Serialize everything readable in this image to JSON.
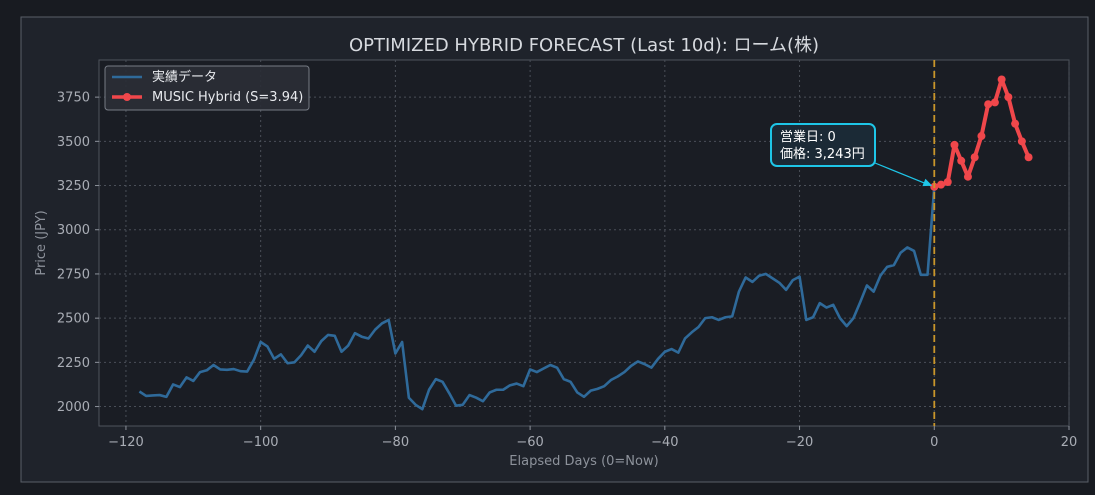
{
  "colors": {
    "figure_bg": "#181b21",
    "panel_bg": "#1f232b",
    "plot_bg": "#1a1d24",
    "actual": "#2f6a9a",
    "forecast": "#f0474b",
    "now_line": "#c9962a",
    "annotation": "#1ec6e8",
    "grid": "#4a4f58"
  },
  "chart_data": {
    "type": "line",
    "title": "OPTIMIZED HYBRID FORECAST (Last 10d): ローム(株)",
    "xlabel": "Elapsed Days (0=Now)",
    "ylabel": "Price (JPY)",
    "xlim": [
      -124,
      20
    ],
    "ylim": [
      1890,
      3960
    ],
    "grid": true,
    "legend_position": "top-left",
    "x_ticks": [
      -120,
      -100,
      -80,
      -60,
      -40,
      -20,
      0,
      20
    ],
    "x_tick_labels": [
      "−120",
      "−100",
      "−80",
      "−60",
      "−40",
      "−20",
      "0",
      "20"
    ],
    "y_ticks": [
      2000,
      2250,
      2500,
      2750,
      3000,
      3250,
      3500,
      3750
    ],
    "y_tick_labels": [
      "2000",
      "2250",
      "2500",
      "2750",
      "3000",
      "3250",
      "3500",
      "3750"
    ],
    "now_x": 0,
    "series": [
      {
        "name": "実績データ",
        "style": "line",
        "x": [
          -118,
          -117,
          -116,
          -115,
          -114,
          -113,
          -112,
          -111,
          -110,
          -109,
          -108,
          -107,
          -106,
          -105,
          -104,
          -103,
          -102,
          -101,
          -100,
          -99,
          -98,
          -97,
          -96,
          -95,
          -94,
          -93,
          -92,
          -91,
          -90,
          -89,
          -88,
          -87,
          -86,
          -85,
          -84,
          -83,
          -82,
          -81,
          -80,
          -79,
          -78,
          -77,
          -76,
          -75,
          -74,
          -73,
          -72,
          -71,
          -70,
          -69,
          -68,
          -67,
          -66,
          -65,
          -64,
          -63,
          -62,
          -61,
          -60,
          -59,
          -58,
          -57,
          -56,
          -55,
          -54,
          -53,
          -52,
          -51,
          -50,
          -49,
          -48,
          -47,
          -46,
          -45,
          -44,
          -43,
          -42,
          -41,
          -40,
          -39,
          -38,
          -37,
          -36,
          -35,
          -34,
          -33,
          -32,
          -31,
          -30,
          -29,
          -28,
          -27,
          -26,
          -25,
          -24,
          -23,
          -22,
          -21,
          -20,
          -19,
          -18,
          -17,
          -16,
          -15,
          -14,
          -13,
          -12,
          -11,
          -10,
          -9,
          -8,
          -7,
          -6,
          -5,
          -4,
          -3,
          -2,
          -1,
          0
        ],
        "values": [
          2085,
          2060,
          2063,
          2065,
          2055,
          2125,
          2110,
          2165,
          2145,
          2195,
          2205,
          2235,
          2210,
          2208,
          2212,
          2200,
          2198,
          2265,
          2365,
          2340,
          2270,
          2295,
          2245,
          2250,
          2290,
          2345,
          2310,
          2370,
          2405,
          2400,
          2310,
          2345,
          2415,
          2395,
          2385,
          2435,
          2470,
          2490,
          2300,
          2365,
          2050,
          2010,
          1985,
          2095,
          2155,
          2140,
          2075,
          2005,
          2010,
          2065,
          2050,
          2030,
          2080,
          2095,
          2095,
          2120,
          2130,
          2115,
          2210,
          2195,
          2215,
          2235,
          2220,
          2155,
          2140,
          2080,
          2055,
          2090,
          2100,
          2115,
          2150,
          2170,
          2195,
          2230,
          2255,
          2240,
          2220,
          2270,
          2310,
          2325,
          2305,
          2385,
          2420,
          2450,
          2500,
          2505,
          2490,
          2505,
          2510,
          2650,
          2730,
          2705,
          2740,
          2750,
          2725,
          2700,
          2660,
          2715,
          2735,
          2490,
          2505,
          2585,
          2560,
          2575,
          2500,
          2455,
          2500,
          2590,
          2685,
          2650,
          2740,
          2790,
          2800,
          2870,
          2900,
          2880,
          2745,
          2745,
          3243
        ]
      },
      {
        "name": "MUSIC Hybrid (S=3.94)",
        "style": "line-marker",
        "x": [
          0,
          1,
          2,
          3,
          4,
          5,
          6,
          7,
          8,
          9,
          10,
          11,
          12,
          13,
          14
        ],
        "values": [
          3243,
          3255,
          3270,
          3480,
          3390,
          3300,
          3410,
          3530,
          3710,
          3720,
          3850,
          3750,
          3600,
          3500,
          3410
        ]
      }
    ],
    "annotation": {
      "line1": "営業日: 0",
      "line2": "価格: 3,243円",
      "point_x": 0,
      "point_y": 3243
    }
  }
}
